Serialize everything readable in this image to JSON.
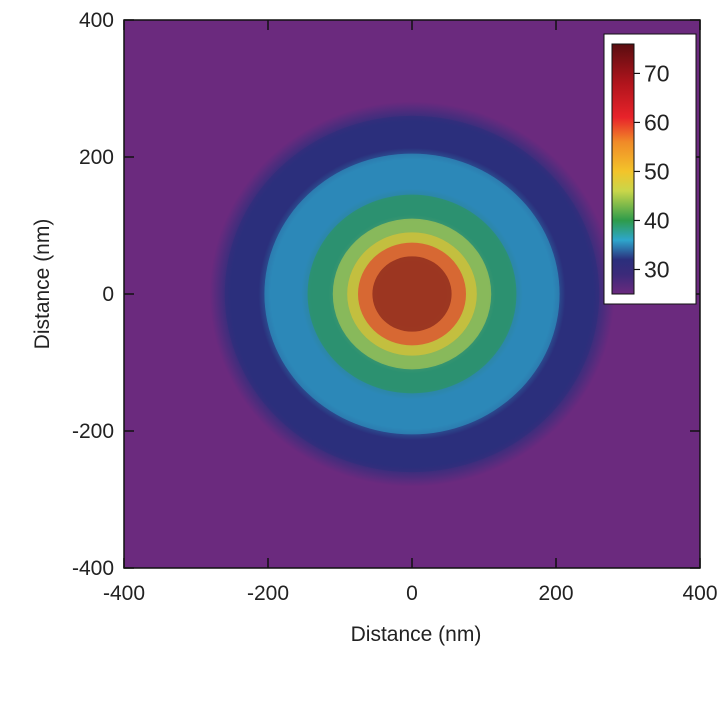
{
  "chart_data": {
    "type": "heatmap",
    "title": "",
    "xlabel": "Distance (nm)",
    "ylabel": "Distance (nm)",
    "xlim": [
      -400,
      400
    ],
    "ylim": [
      -400,
      400
    ],
    "x_ticks": [
      -400,
      -200,
      0,
      200,
      400
    ],
    "y_ticks": [
      -400,
      -200,
      0,
      200,
      400
    ],
    "x_tick_labels": [
      "-400",
      "-200",
      "0",
      "200",
      "400"
    ],
    "y_tick_labels": [
      "-400",
      "-200",
      "0",
      "200",
      "400"
    ],
    "center": [
      0,
      0
    ],
    "background_value": 25,
    "peak_value": 75,
    "contour_levels": [
      {
        "lower": 25,
        "upper": 30,
        "inner_radius_nm": 260,
        "outer_radius_nm": 400,
        "color": "#6b2a7e"
      },
      {
        "lower": 30,
        "upper": 35,
        "inner_radius_nm": 205,
        "outer_radius_nm": 260,
        "color": "#2b2f7c"
      },
      {
        "lower": 35,
        "upper": 40,
        "inner_radius_nm": 145,
        "outer_radius_nm": 205,
        "color": "#2ea6cc"
      },
      {
        "lower": 40,
        "upper": 45,
        "inner_radius_nm": 110,
        "outer_radius_nm": 145,
        "color": "#2e9b4b"
      },
      {
        "lower": 45,
        "upper": 50,
        "inner_radius_nm": 90,
        "outer_radius_nm": 110,
        "color": "#c9d64a"
      },
      {
        "lower": 50,
        "upper": 55,
        "inner_radius_nm": 75,
        "outer_radius_nm": 90,
        "color": "#f3c42a"
      },
      {
        "lower": 55,
        "upper": 65,
        "inner_radius_nm": 55,
        "outer_radius_nm": 75,
        "color": "#e8232a"
      },
      {
        "lower": 65,
        "upper": 75,
        "inner_radius_nm": 0,
        "outer_radius_nm": 55,
        "color": "#6e0f12"
      }
    ],
    "colorbar": {
      "min": 25,
      "max": 76,
      "ticks": [
        70,
        60,
        50,
        40,
        30
      ],
      "tick_labels": [
        "70",
        "60",
        "50",
        "40",
        "30"
      ],
      "stops": [
        {
          "value": 25,
          "color": "#6b2a7e"
        },
        {
          "value": 29,
          "color": "#3b2a7a"
        },
        {
          "value": 32,
          "color": "#2b2f7c"
        },
        {
          "value": 36,
          "color": "#2ea6cc"
        },
        {
          "value": 40,
          "color": "#2e9b4b"
        },
        {
          "value": 46,
          "color": "#c9d64a"
        },
        {
          "value": 50,
          "color": "#f3c42a"
        },
        {
          "value": 56,
          "color": "#f08a28"
        },
        {
          "value": 61,
          "color": "#e8232a"
        },
        {
          "value": 68,
          "color": "#b0141c"
        },
        {
          "value": 76,
          "color": "#5a0d10"
        }
      ],
      "placement": "top-right"
    },
    "grid": false
  }
}
